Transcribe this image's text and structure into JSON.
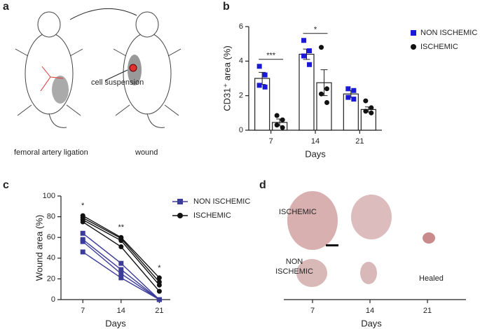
{
  "panel_labels": [
    "a",
    "b",
    "c",
    "d"
  ],
  "panel_a": {
    "left_caption": "femoral artery ligation",
    "right_caption": "wound",
    "arrow_label": "cell suspension"
  },
  "panel_d": {
    "row_labels": [
      "ISCHEMIC",
      "NON\nISCHEMIC"
    ],
    "healed": "Healed",
    "xticks": [
      "7",
      "14",
      "21"
    ],
    "xlabel": "Days"
  },
  "chart_data": [
    {
      "type": "bar",
      "ylabel": "CD31⁺ area (%)",
      "xlabel": "Days",
      "categories": [
        "7",
        "14",
        "21"
      ],
      "ylim": [
        0,
        6
      ],
      "yticks": [
        0,
        2,
        4,
        6
      ],
      "series": [
        {
          "name": "NON ISCHEMIC",
          "color": "#1a1ad6",
          "values": [
            3.0,
            4.4,
            2.1
          ],
          "errors": [
            0.35,
            0.3,
            0.2
          ],
          "points": [
            [
              3.7,
              3.2,
              2.6,
              2.5
            ],
            [
              5.2,
              4.6,
              4.3,
              3.8
            ],
            [
              2.4,
              2.3,
              1.9,
              1.8
            ]
          ]
        },
        {
          "name": "ISCHEMIC",
          "color": "#111111",
          "values": [
            0.45,
            2.75,
            1.2
          ],
          "errors": [
            0.2,
            0.75,
            0.15
          ],
          "points": [
            [
              0.85,
              0.6,
              0.3,
              0.15
            ],
            [
              4.8,
              2.4,
              2.1,
              1.6
            ],
            [
              1.7,
              1.3,
              1.1,
              1.0
            ]
          ]
        }
      ],
      "annotations": [
        {
          "text": "***",
          "x": "7"
        },
        {
          "text": "*",
          "x": "14"
        }
      ]
    },
    {
      "type": "line",
      "ylabel": "Wound area (%)",
      "xlabel": "Days",
      "x": [
        7,
        14,
        21
      ],
      "xlim": [
        3,
        23
      ],
      "xticks": [
        7,
        14,
        21
      ],
      "ylim": [
        0,
        100
      ],
      "yticks": [
        0,
        20,
        40,
        60,
        80,
        100
      ],
      "series": [
        {
          "name": "NON ISCHEMIC",
          "color": "#3b3b9a",
          "marker": "square",
          "values": [
            [
              64,
              35,
              0
            ],
            [
              58,
              29,
              0
            ],
            [
              56,
              25,
              0
            ],
            [
              46,
              21,
              0
            ]
          ]
        },
        {
          "name": "ISCHEMIC",
          "color": "#111111",
          "marker": "circle",
          "values": [
            [
              81,
              60,
              21
            ],
            [
              79,
              59,
              17
            ],
            [
              77,
              57,
              14
            ],
            [
              75,
              51,
              8
            ]
          ]
        }
      ],
      "annotations": [
        {
          "text": "*",
          "x": 7
        },
        {
          "text": "**",
          "x": 14
        },
        {
          "text": "*",
          "x": 21
        }
      ]
    }
  ]
}
